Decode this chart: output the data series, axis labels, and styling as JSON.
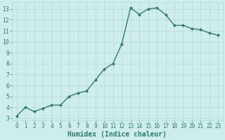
{
  "x": [
    0,
    1,
    2,
    3,
    4,
    5,
    6,
    7,
    8,
    9,
    10,
    11,
    12,
    13,
    14,
    15,
    16,
    17,
    18,
    19,
    20,
    21,
    22,
    23
  ],
  "y": [
    3.2,
    4.0,
    3.6,
    3.9,
    4.2,
    4.2,
    5.0,
    5.3,
    5.5,
    6.5,
    7.5,
    8.0,
    9.8,
    13.1,
    12.5,
    13.0,
    13.1,
    12.5,
    11.5,
    11.5,
    11.2,
    11.1,
    10.8,
    10.6
  ],
  "line_color": "#2d7d6e",
  "marker": "D",
  "markersize": 2.0,
  "linewidth": 1.0,
  "bg_color": "#ceeeed",
  "grid_color": "#b8dbd9",
  "xlabel": "Humidex (Indice chaleur)",
  "xlim": [
    -0.5,
    23.5
  ],
  "ylim": [
    2.8,
    13.6
  ],
  "yticks": [
    3,
    4,
    5,
    6,
    7,
    8,
    9,
    10,
    11,
    12,
    13
  ],
  "xticks": [
    0,
    1,
    2,
    3,
    4,
    5,
    6,
    7,
    8,
    9,
    10,
    11,
    12,
    13,
    14,
    15,
    16,
    17,
    18,
    19,
    20,
    21,
    22,
    23
  ],
  "tick_labelsize": 5.5,
  "xlabel_fontsize": 7.0,
  "xlabel_fontweight": "bold"
}
